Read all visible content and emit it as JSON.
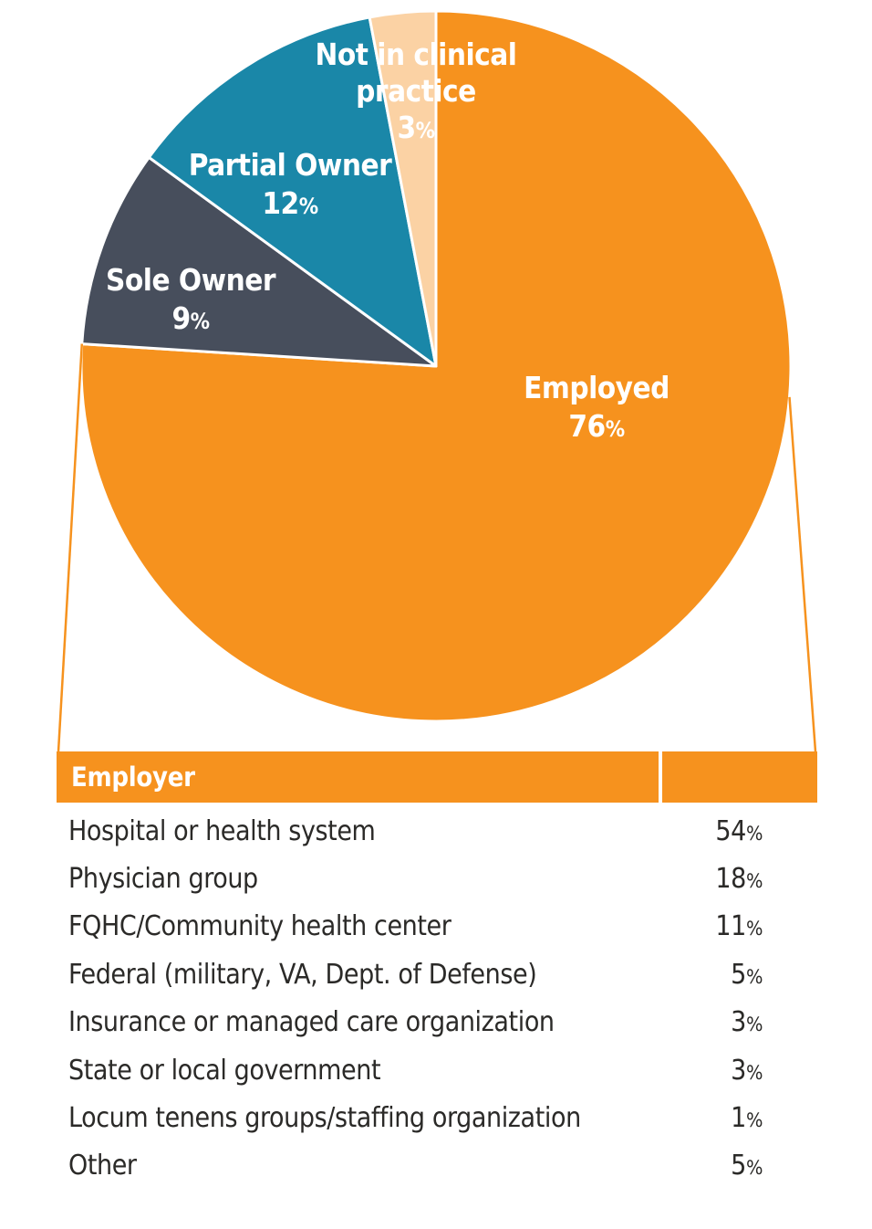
{
  "palette": {
    "accent_orange": "#F6921E",
    "slate": "#474E5C",
    "teal": "#1A87A8",
    "peach": "#FBD2A4",
    "label_white": "#FFFFFF",
    "table_text": "#2B2A28"
  },
  "chart_data": [
    {
      "type": "pie",
      "title": "",
      "start_angle": "top",
      "direction": "clockwise",
      "labels_position": "inside",
      "percent_sign": "%",
      "segments": [
        {
          "label": "Employed",
          "value": 76,
          "color": "#F6921E"
        },
        {
          "label": "Sole Owner",
          "value": 9,
          "color": "#474E5C"
        },
        {
          "label": "Partial Owner",
          "value": 12,
          "color": "#1A87A8"
        },
        {
          "label": "Not in clinical practice",
          "value": 3,
          "color": "#FBD2A4"
        }
      ]
    },
    {
      "type": "table",
      "header": "Employer",
      "percent_sign": "%",
      "note": "breakdown of the Employed 76% slice",
      "rows": [
        {
          "label": "Hospital or health system",
          "value": 54
        },
        {
          "label": "Physician group",
          "value": 18
        },
        {
          "label": "FQHC/Community health center",
          "value": 11
        },
        {
          "label": "Federal (military, VA, Dept. of Defense)",
          "value": 5
        },
        {
          "label": "Insurance or managed care organization",
          "value": 3
        },
        {
          "label": "State or local government",
          "value": 3
        },
        {
          "label": "Locum tenens groups/staffing organization",
          "value": 1
        },
        {
          "label": "Other",
          "value": 5
        }
      ]
    }
  ]
}
